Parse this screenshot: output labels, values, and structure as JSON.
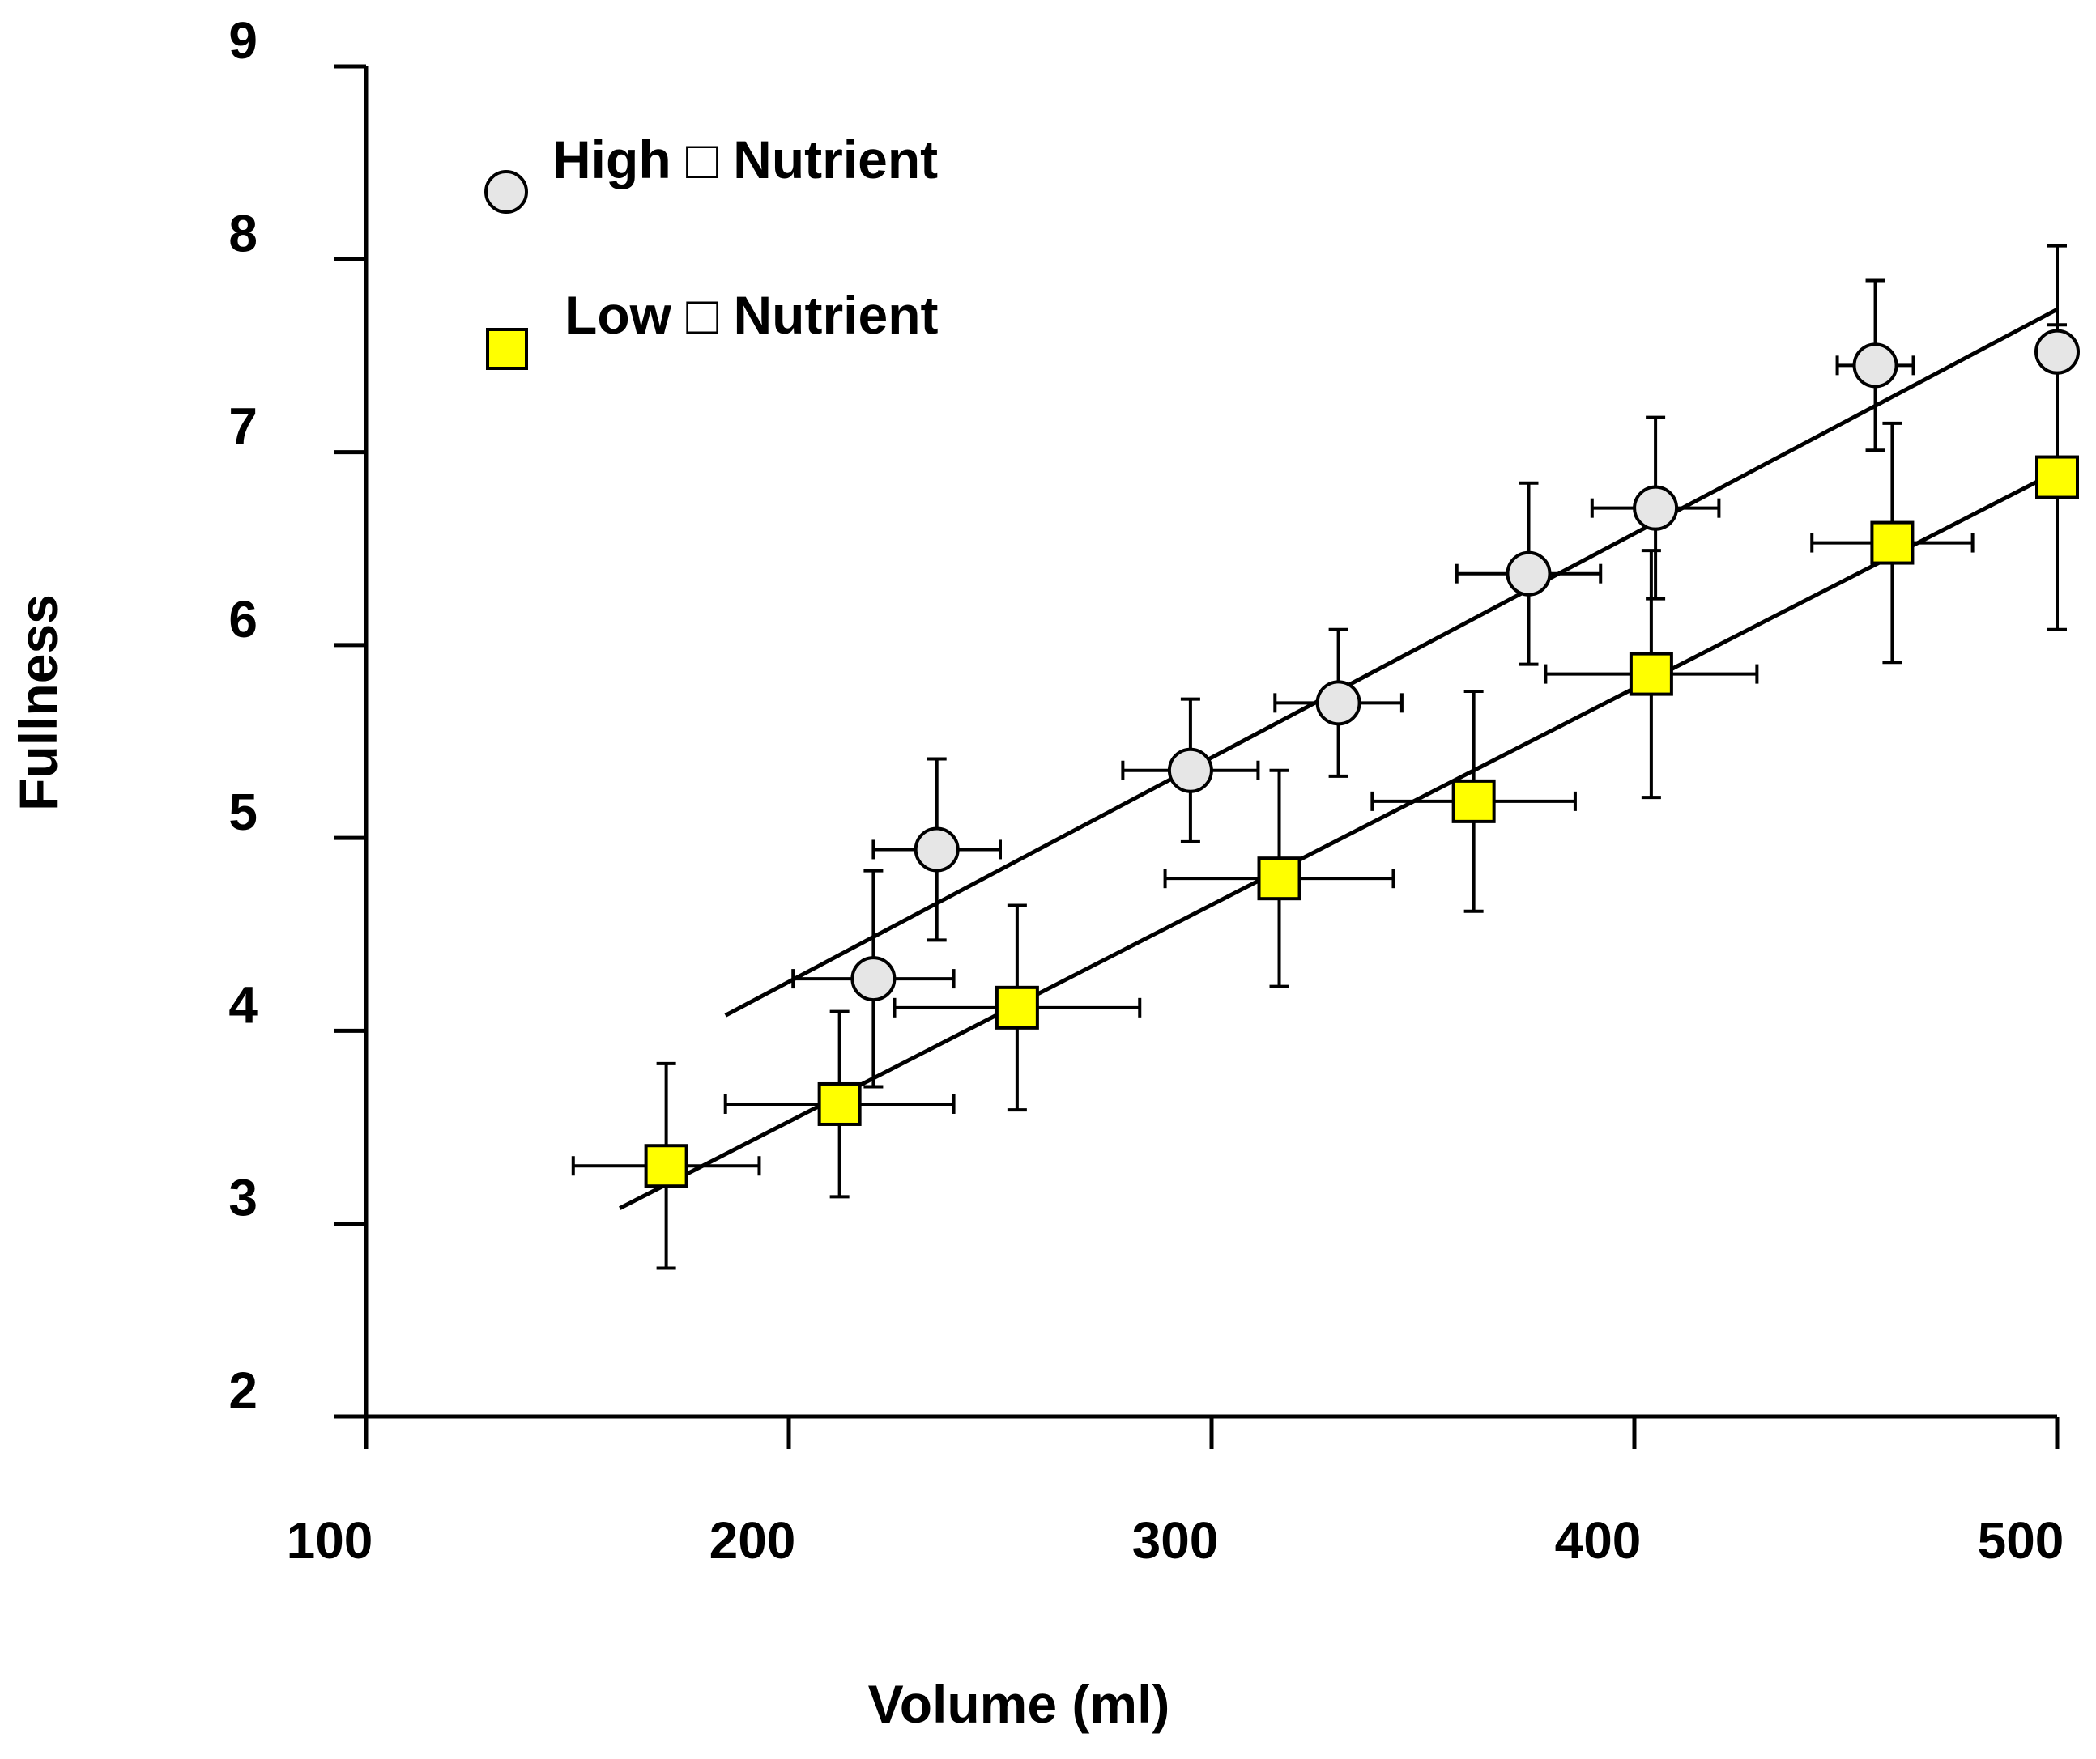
{
  "colors": {
    "axis": "#000000",
    "high_fill": "#e6e6e6",
    "low_fill": "#ffff00",
    "marker_stroke": "#000000",
    "background": "#ffffff"
  },
  "chart_data": {
    "type": "scatter",
    "title": "",
    "xlabel": "Volume (ml)",
    "ylabel": "Fullness",
    "xlim": [
      100,
      500
    ],
    "ylim": [
      2,
      9
    ],
    "xticks": [
      100,
      200,
      300,
      400,
      500
    ],
    "yticks": [
      2,
      3,
      4,
      5,
      6,
      7,
      8,
      9
    ],
    "x_tick_labels": [
      "100",
      "200",
      "300",
      "400",
      "500"
    ],
    "y_tick_labels": [
      "2",
      "3",
      "4",
      "5",
      "6",
      "7",
      "8",
      "9"
    ],
    "legend_position": "top-left",
    "series": [
      {
        "name": "High □ Nutrient",
        "marker": "circle",
        "fill": "#e6e6e6",
        "points": [
          {
            "x": 220,
            "y": 4.27,
            "xerr": 19,
            "yerr": 0.56
          },
          {
            "x": 235,
            "y": 4.94,
            "xerr": 15,
            "yerr": 0.47
          },
          {
            "x": 295,
            "y": 5.35,
            "xerr": 16,
            "yerr": 0.37
          },
          {
            "x": 330,
            "y": 5.7,
            "xerr": 15,
            "yerr": 0.38
          },
          {
            "x": 375,
            "y": 6.37,
            "xerr": 17,
            "yerr": 0.47
          },
          {
            "x": 405,
            "y": 6.71,
            "xerr": 15,
            "yerr": 0.47
          },
          {
            "x": 457,
            "y": 7.45,
            "xerr": 9,
            "yerr": 0.44
          },
          {
            "x": 500,
            "y": 7.52,
            "xerr": 3,
            "yerr": 0.55
          }
        ],
        "trendline": {
          "x1": 185,
          "y1": 4.08,
          "x2": 500,
          "y2": 7.74
        }
      },
      {
        "name": "Low □ Nutrient",
        "marker": "square",
        "fill": "#ffff00",
        "points": [
          {
            "x": 171,
            "y": 3.3,
            "xerr": 22,
            "yerr": 0.53
          },
          {
            "x": 212,
            "y": 3.62,
            "xerr": 27,
            "yerr": 0.48
          },
          {
            "x": 254,
            "y": 4.12,
            "xerr": 29,
            "yerr": 0.53
          },
          {
            "x": 316,
            "y": 4.79,
            "xerr": 27,
            "yerr": 0.56
          },
          {
            "x": 362,
            "y": 5.19,
            "xerr": 24,
            "yerr": 0.57
          },
          {
            "x": 404,
            "y": 5.85,
            "xerr": 25,
            "yerr": 0.64
          },
          {
            "x": 461,
            "y": 6.53,
            "xerr": 19,
            "yerr": 0.62
          },
          {
            "x": 500,
            "y": 6.87,
            "xerr": 0,
            "yerr": 0.79
          }
        ],
        "trendline": {
          "x1": 160,
          "y1": 3.08,
          "x2": 500,
          "y2": 6.9
        }
      }
    ]
  }
}
